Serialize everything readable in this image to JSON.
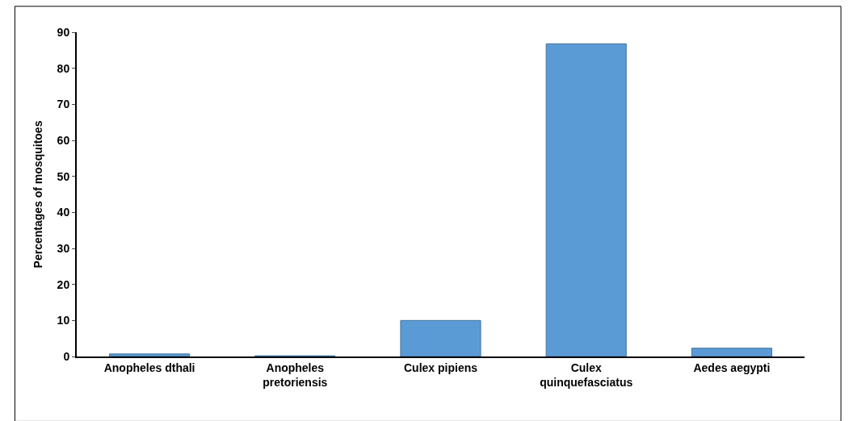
{
  "chart_data": {
    "type": "bar",
    "ylabel": "Percentages of mosquitoes",
    "categories": [
      "Anopheles dthali",
      "Anopheles pretoriensis",
      "Culex pipiens",
      "Culex quinquefasciatus",
      "Aedes aegypti"
    ],
    "values": [
      0.7,
      0.2,
      10,
      86.8,
      2.3
    ],
    "color": "#5b9bd5",
    "ylim": [
      0,
      90
    ],
    "yticks": [
      0,
      10,
      20,
      30,
      40,
      50,
      60,
      70,
      80,
      90
    ]
  }
}
